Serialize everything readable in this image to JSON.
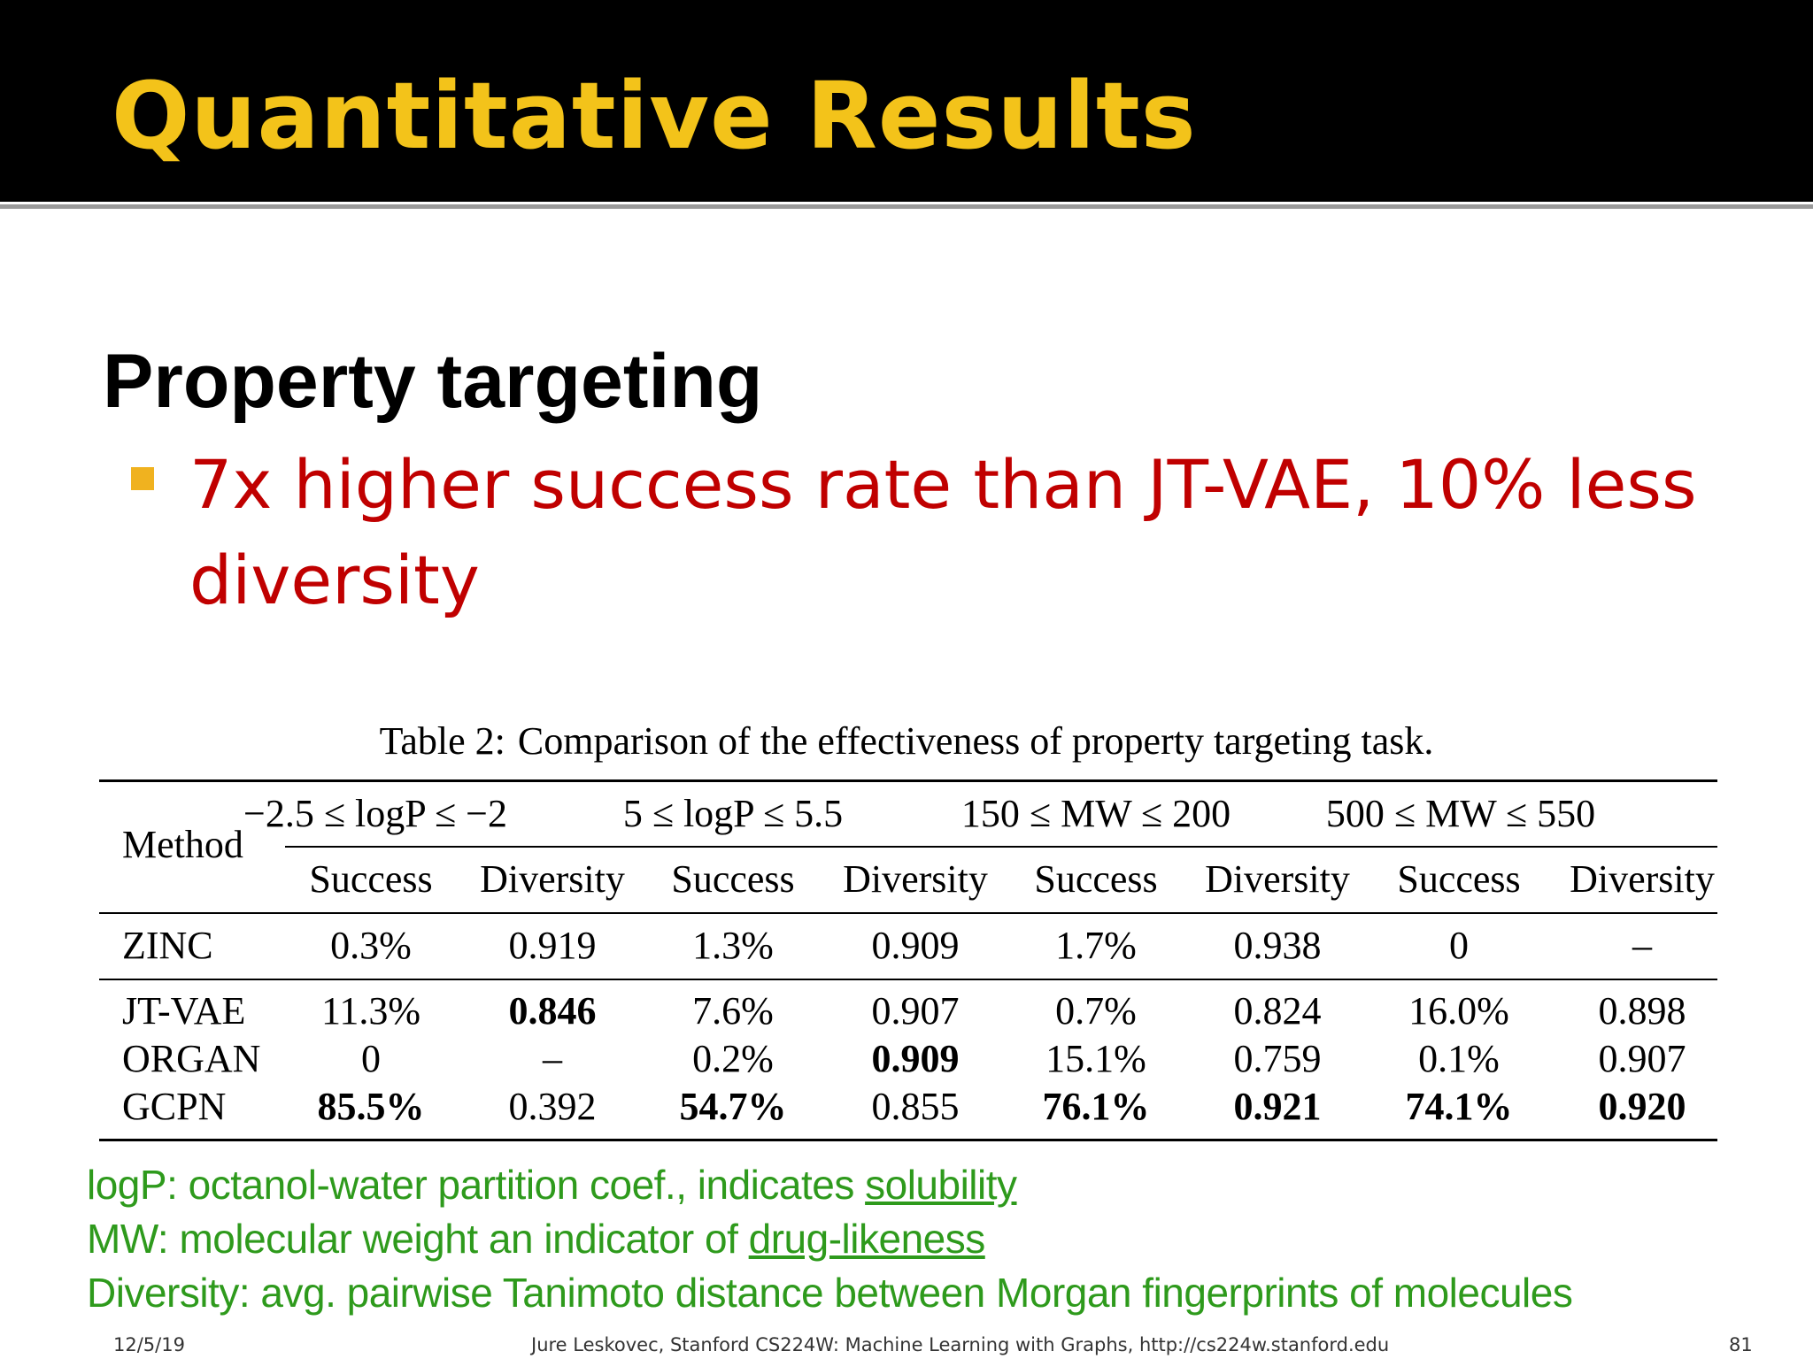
{
  "slide": {
    "title": "Quantitative Results",
    "heading": "Property targeting",
    "bullet": "7x higher success rate than JT-VAE, 10% less diversity"
  },
  "table": {
    "label": "Table 2:",
    "caption": "Comparison of the effectiveness of property targeting task.",
    "method_header": "Method",
    "groups": [
      "−2.5 ≤ logP ≤ −2",
      "5 ≤ logP ≤ 5.5",
      "150 ≤ MW ≤ 200",
      "500 ≤ MW ≤ 550"
    ],
    "subheaders": [
      "Success",
      "Diversity",
      "Success",
      "Diversity",
      "Success",
      "Diversity",
      "Success",
      "Diversity"
    ],
    "rows": [
      {
        "method": "ZINC",
        "values": [
          "0.3%",
          "0.919",
          "1.3%",
          "0.909",
          "1.7%",
          "0.938",
          "0",
          "–"
        ],
        "bold": [
          false,
          false,
          false,
          false,
          false,
          false,
          false,
          false
        ]
      },
      {
        "method": "JT-VAE",
        "values": [
          "11.3%",
          "0.846",
          "7.6%",
          "0.907",
          "0.7%",
          "0.824",
          "16.0%",
          "0.898"
        ],
        "bold": [
          false,
          true,
          false,
          false,
          false,
          false,
          false,
          false
        ]
      },
      {
        "method": "ORGAN",
        "values": [
          "0",
          "–",
          "0.2%",
          "0.909",
          "15.1%",
          "0.759",
          "0.1%",
          "0.907"
        ],
        "bold": [
          false,
          false,
          false,
          true,
          false,
          false,
          false,
          false
        ]
      },
      {
        "method": "GCPN",
        "values": [
          "85.5%",
          "0.392",
          "54.7%",
          "0.855",
          "76.1%",
          "0.921",
          "74.1%",
          "0.920"
        ],
        "bold": [
          true,
          false,
          true,
          false,
          true,
          true,
          true,
          true
        ]
      }
    ]
  },
  "notes": {
    "logp_term": "logP:",
    "logp_text": " octanol-water partition coef., indicates ",
    "logp_link": "solubility",
    "mw_term": "MW",
    "mw_text": ": molecular weight an indicator of ",
    "mw_link": "drug-likeness",
    "div_term": "Diversity",
    "div_text": ": avg. pairwise Tanimoto distance between Morgan fingerprints of molecules"
  },
  "footer": {
    "date": "12/5/19",
    "credit": "Jure Leskovec, Stanford CS224W: Machine Learning with Graphs, http://cs224w.stanford.edu",
    "page": "81"
  },
  "colors": {
    "title": "#f3c31a",
    "bullet_text": "#c00000",
    "bullet_square": "#f0b21f",
    "notes": "#2e9a1c"
  }
}
